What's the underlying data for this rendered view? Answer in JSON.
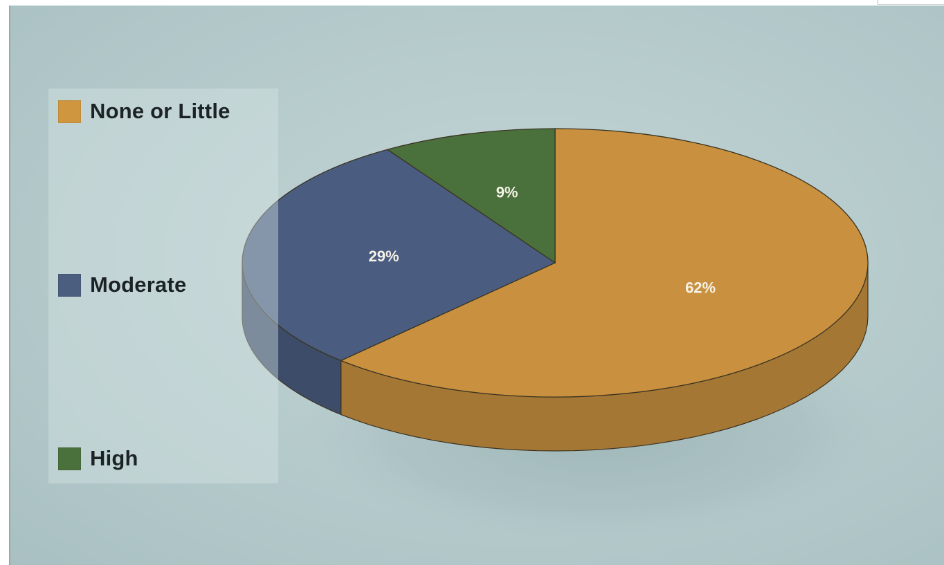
{
  "chart_data": {
    "type": "pie",
    "style": "3d",
    "title": "",
    "legend_position": "left",
    "categories": [
      "None or Little",
      "Moderate",
      "High"
    ],
    "values": [
      62,
      29,
      9
    ],
    "value_unit": "%",
    "data_labels": [
      "62%",
      "29%",
      "9%"
    ],
    "colors": [
      "#c9913f",
      "#4a5d80",
      "#4a703c"
    ]
  }
}
